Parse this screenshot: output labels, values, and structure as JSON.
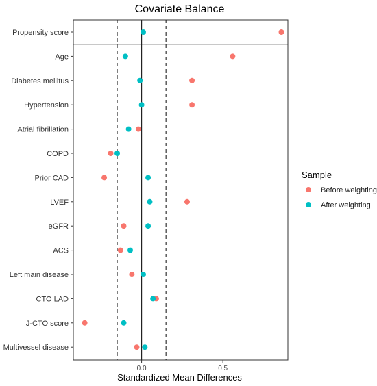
{
  "chart_data": {
    "type": "scatter",
    "title": "Covariate Balance",
    "xlabel": "Standardized Mean Differences",
    "ylabel": "",
    "xlim": [
      -0.42,
      0.9
    ],
    "x_ticks": [
      0.0,
      0.5
    ],
    "x_tick_labels": [
      "0.0",
      "0.5"
    ],
    "threshold_lines": [
      -0.15,
      0.15
    ],
    "zero_line": 0.0,
    "grid": false,
    "legend": {
      "title": "Sample",
      "placement": "right"
    },
    "categories": [
      "Propensity score",
      "Age",
      "Diabetes mellitus",
      "Hypertension",
      "Atrial fibrillation",
      "COPD",
      "Prior CAD",
      "LVEF",
      "eGFR",
      "ACS",
      "Left main disease",
      "CTO LAD",
      "J-CTO score",
      "Multivessel disease"
    ],
    "series": [
      {
        "name": "Before weighting",
        "color": "#F8766D",
        "values": [
          0.86,
          0.56,
          0.31,
          0.31,
          -0.02,
          -0.19,
          -0.23,
          0.28,
          -0.11,
          -0.13,
          -0.06,
          0.09,
          -0.35,
          -0.03
        ]
      },
      {
        "name": "After weighting",
        "color": "#00BFC4",
        "values": [
          0.01,
          -0.1,
          -0.01,
          0.0,
          -0.08,
          -0.15,
          0.04,
          0.05,
          0.04,
          -0.07,
          0.01,
          0.07,
          -0.11,
          0.02
        ]
      }
    ]
  }
}
